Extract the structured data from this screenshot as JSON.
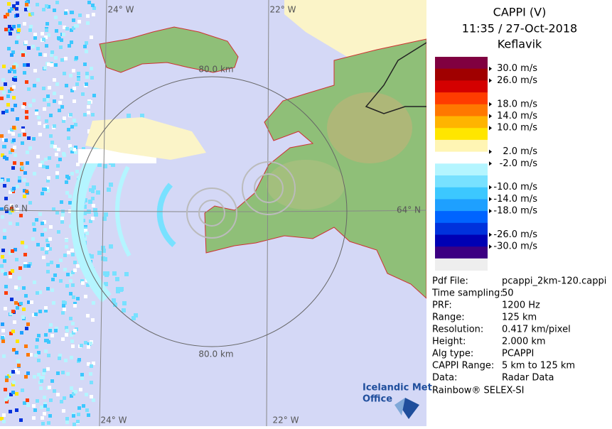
{
  "map": {
    "grid_labels": [
      "24° W",
      "22° W",
      "64° N",
      "64° N",
      "24° W",
      "22° W"
    ],
    "range_labels": [
      "80.0 km",
      "80.0 km"
    ]
  },
  "logo": {
    "line1": "Icelandic Met",
    "line2": "Office"
  },
  "panel": {
    "title": "CAPPI (V)",
    "time": "11:35 / 27-Oct-2018",
    "site": "Keflavik",
    "legend": {
      "colors": [
        "#800040",
        "#a00000",
        "#d40000",
        "#ff3c00",
        "#ff7800",
        "#ffb400",
        "#ffe600",
        "#fff5b4",
        "#ffffff",
        "#b4f5ff",
        "#78e1ff",
        "#3cc8ff",
        "#1ea0ff",
        "#0064ff",
        "#0032dc",
        "#0000b4",
        "#3c0082",
        "#eeeeee"
      ],
      "labels": [
        "30.0 m/s",
        "26.0 m/s",
        "18.0 m/s",
        "14.0 m/s",
        "10.0 m/s",
        "2.0 m/s",
        "-2.0 m/s",
        "-10.0 m/s",
        "-14.0 m/s",
        "-18.0 m/s",
        "-26.0 m/s",
        "-30.0 m/s"
      ]
    },
    "info": [
      [
        "Pdf File:",
        "pcappi_2km-120.cappi"
      ],
      [
        "Time sampling:",
        "50"
      ],
      [
        "PRF:",
        "1200 Hz"
      ],
      [
        "Range:",
        "125 km"
      ],
      [
        "Resolution:",
        "0.417 km/pixel"
      ],
      [
        "Height:",
        "2.000 km"
      ],
      [
        "Alg type:",
        "PCAPPI"
      ],
      [
        "CAPPI Range:",
        "5 km to 125 km"
      ],
      [
        "Data:",
        "Radar Data"
      ]
    ],
    "footer": "Rainbow® SELEX-SI"
  }
}
